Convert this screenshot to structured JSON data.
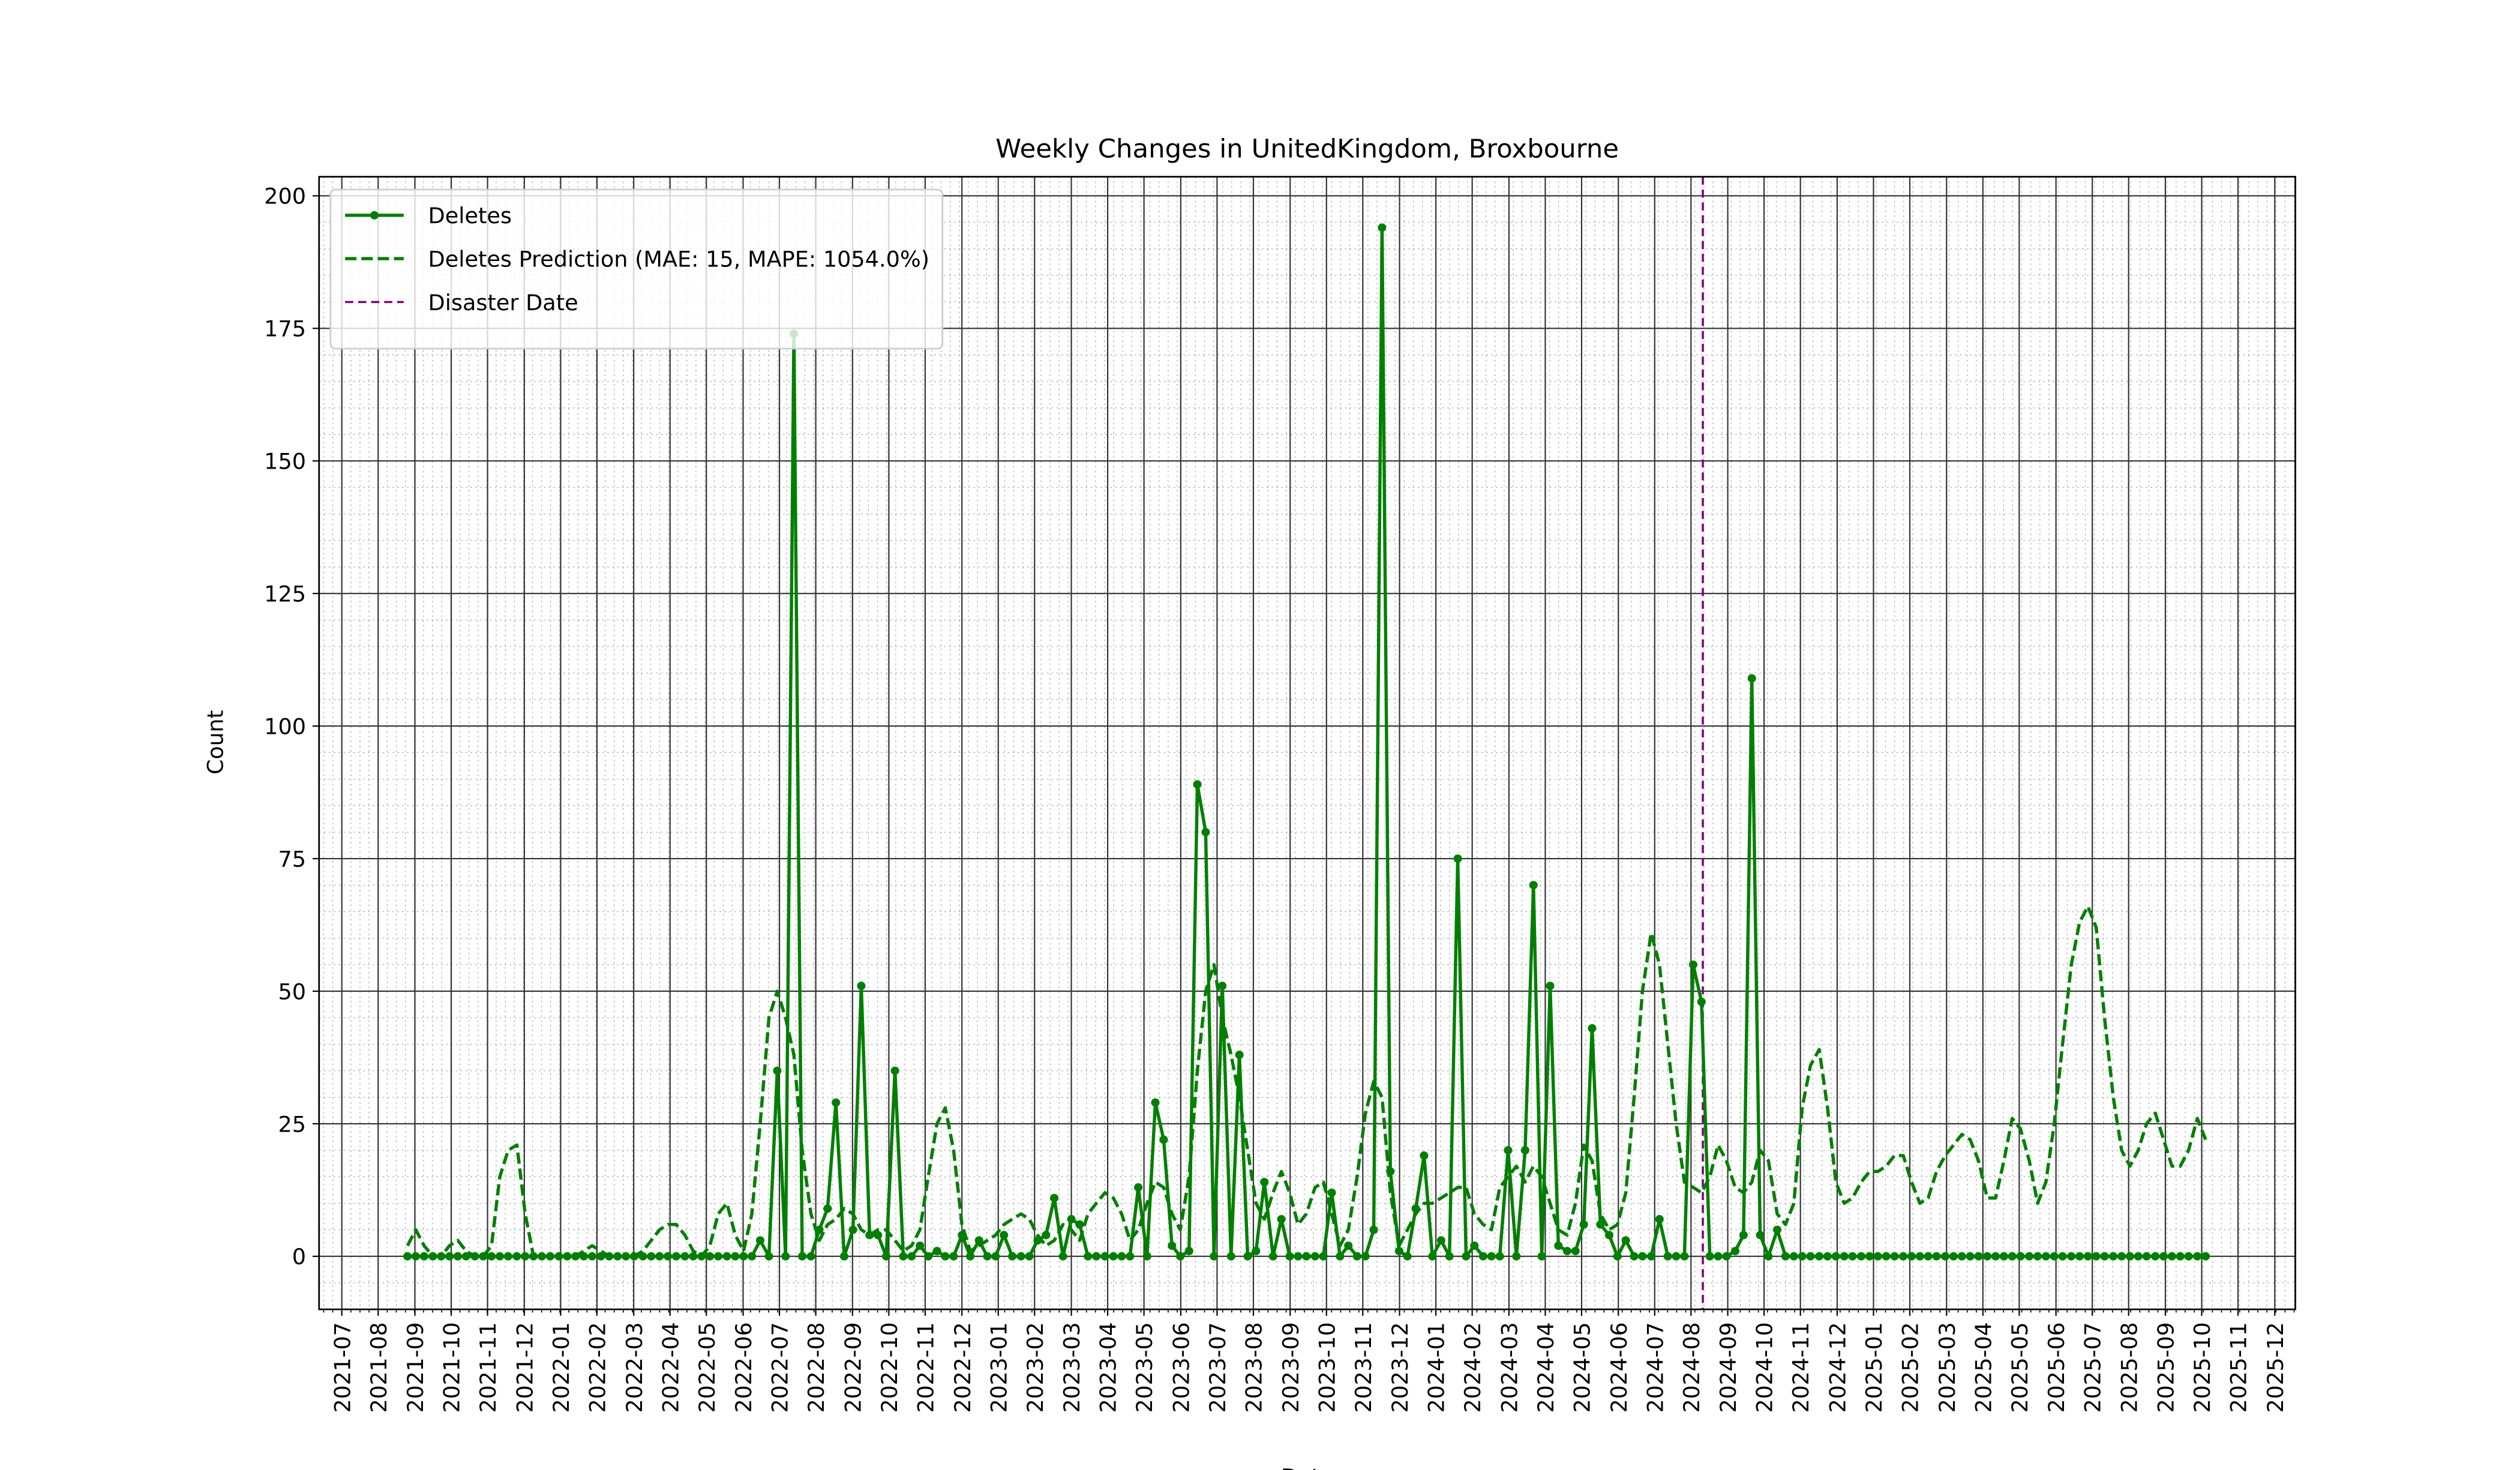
{
  "chart_data": {
    "type": "line",
    "title": "Weekly Changes in UnitedKingdom, Broxbourne",
    "xlabel": "Date",
    "ylabel": "Count",
    "xlim": [
      2021.448,
      2025.964
    ],
    "ylim": [
      -10,
      203.6
    ],
    "yticks": [
      0,
      25,
      50,
      75,
      100,
      125,
      150,
      175,
      200
    ],
    "xticks": [
      {
        "value": 2021.5,
        "label": "2021-07"
      },
      {
        "value": 2021.583,
        "label": "2021-08"
      },
      {
        "value": 2021.667,
        "label": "2021-09"
      },
      {
        "value": 2021.75,
        "label": "2021-10"
      },
      {
        "value": 2021.833,
        "label": "2021-11"
      },
      {
        "value": 2021.917,
        "label": "2021-12"
      },
      {
        "value": 2022.0,
        "label": "2022-01"
      },
      {
        "value": 2022.083,
        "label": "2022-02"
      },
      {
        "value": 2022.167,
        "label": "2022-03"
      },
      {
        "value": 2022.25,
        "label": "2022-04"
      },
      {
        "value": 2022.333,
        "label": "2022-05"
      },
      {
        "value": 2022.417,
        "label": "2022-06"
      },
      {
        "value": 2022.5,
        "label": "2022-07"
      },
      {
        "value": 2022.583,
        "label": "2022-08"
      },
      {
        "value": 2022.667,
        "label": "2022-09"
      },
      {
        "value": 2022.75,
        "label": "2022-10"
      },
      {
        "value": 2022.833,
        "label": "2022-11"
      },
      {
        "value": 2022.917,
        "label": "2022-12"
      },
      {
        "value": 2023.0,
        "label": "2023-01"
      },
      {
        "value": 2023.083,
        "label": "2023-02"
      },
      {
        "value": 2023.167,
        "label": "2023-03"
      },
      {
        "value": 2023.25,
        "label": "2023-04"
      },
      {
        "value": 2023.333,
        "label": "2023-05"
      },
      {
        "value": 2023.417,
        "label": "2023-06"
      },
      {
        "value": 2023.5,
        "label": "2023-07"
      },
      {
        "value": 2023.583,
        "label": "2023-08"
      },
      {
        "value": 2023.667,
        "label": "2023-09"
      },
      {
        "value": 2023.75,
        "label": "2023-10"
      },
      {
        "value": 2023.833,
        "label": "2023-11"
      },
      {
        "value": 2023.917,
        "label": "2023-12"
      },
      {
        "value": 2024.0,
        "label": "2024-01"
      },
      {
        "value": 2024.083,
        "label": "2024-02"
      },
      {
        "value": 2024.167,
        "label": "2024-03"
      },
      {
        "value": 2024.25,
        "label": "2024-04"
      },
      {
        "value": 2024.333,
        "label": "2024-05"
      },
      {
        "value": 2024.417,
        "label": "2024-06"
      },
      {
        "value": 2024.5,
        "label": "2024-07"
      },
      {
        "value": 2024.583,
        "label": "2024-08"
      },
      {
        "value": 2024.667,
        "label": "2024-09"
      },
      {
        "value": 2024.75,
        "label": "2024-10"
      },
      {
        "value": 2024.833,
        "label": "2024-11"
      },
      {
        "value": 2024.917,
        "label": "2024-12"
      },
      {
        "value": 2025.0,
        "label": "2025-01"
      },
      {
        "value": 2025.083,
        "label": "2025-02"
      },
      {
        "value": 2025.167,
        "label": "2025-03"
      },
      {
        "value": 2025.25,
        "label": "2025-04"
      },
      {
        "value": 2025.333,
        "label": "2025-05"
      },
      {
        "value": 2025.417,
        "label": "2025-06"
      },
      {
        "value": 2025.5,
        "label": "2025-07"
      },
      {
        "value": 2025.583,
        "label": "2025-08"
      },
      {
        "value": 2025.667,
        "label": "2025-09"
      },
      {
        "value": 2025.75,
        "label": "2025-10"
      },
      {
        "value": 2025.833,
        "label": "2025-11"
      },
      {
        "value": 2025.917,
        "label": "2025-12"
      }
    ],
    "grid": true,
    "minor_grid": true,
    "legend": "upper left",
    "x": [
      2021.65,
      2021.669,
      2021.688,
      2021.708,
      2021.727,
      2021.746,
      2021.765,
      2021.784,
      2021.804,
      2021.823,
      2021.842,
      2021.861,
      2021.88,
      2021.9,
      2021.919,
      2021.938,
      2021.957,
      2021.976,
      2021.996,
      2022.015,
      2022.034,
      2022.053,
      2022.072,
      2022.092,
      2022.111,
      2022.13,
      2022.149,
      2022.168,
      2022.188,
      2022.207,
      2022.226,
      2022.245,
      2022.264,
      2022.284,
      2022.303,
      2022.322,
      2022.341,
      2022.36,
      2022.38,
      2022.399,
      2022.418,
      2022.437,
      2022.456,
      2022.476,
      2022.495,
      2022.514,
      2022.533,
      2022.552,
      2022.572,
      2022.591,
      2022.61,
      2022.629,
      2022.648,
      2022.668,
      2022.687,
      2022.706,
      2022.725,
      2022.744,
      2022.764,
      2022.783,
      2022.802,
      2022.821,
      2022.84,
      2022.86,
      2022.879,
      2022.898,
      2022.917,
      2022.936,
      2022.956,
      2022.975,
      2022.994,
      2023.013,
      2023.032,
      2023.052,
      2023.071,
      2023.09,
      2023.109,
      2023.128,
      2023.148,
      2023.167,
      2023.186,
      2023.205,
      2023.224,
      2023.244,
      2023.263,
      2023.282,
      2023.301,
      2023.32,
      2023.34,
      2023.359,
      2023.378,
      2023.397,
      2023.416,
      2023.436,
      2023.455,
      2023.474,
      2023.493,
      2023.512,
      2023.532,
      2023.551,
      2023.57,
      2023.589,
      2023.608,
      2023.628,
      2023.647,
      2023.666,
      2023.685,
      2023.704,
      2023.724,
      2023.743,
      2023.762,
      2023.781,
      2023.8,
      2023.82,
      2023.839,
      2023.858,
      2023.877,
      2023.896,
      2023.916,
      2023.935,
      2023.954,
      2023.973,
      2023.992,
      2024.012,
      2024.031,
      2024.05,
      2024.069,
      2024.088,
      2024.108,
      2024.127,
      2024.146,
      2024.165,
      2024.184,
      2024.204,
      2024.223,
      2024.242,
      2024.261,
      2024.28,
      2024.3,
      2024.319,
      2024.338,
      2024.357,
      2024.376,
      2024.396,
      2024.415,
      2024.434,
      2024.453,
      2024.472,
      2024.492,
      2024.511,
      2024.53,
      2024.549,
      2024.568,
      2024.588,
      2024.607,
      2024.626,
      2024.645,
      2024.664,
      2024.684,
      2024.703,
      2024.722,
      2024.741,
      2024.76,
      2024.78,
      2024.799,
      2024.818,
      2024.837,
      2024.856,
      2024.876,
      2024.895,
      2024.914,
      2024.933,
      2024.952,
      2024.972,
      2024.991,
      2025.01,
      2025.029,
      2025.048,
      2025.068,
      2025.087,
      2025.106,
      2025.125,
      2025.144,
      2025.164,
      2025.183,
      2025.202,
      2025.221,
      2025.24,
      2025.26,
      2025.279,
      2025.298,
      2025.317,
      2025.336,
      2025.356,
      2025.375,
      2025.394,
      2025.413,
      2025.432,
      2025.452,
      2025.471,
      2025.49,
      2025.509,
      2025.528,
      2025.548,
      2025.567,
      2025.586,
      2025.605,
      2025.624,
      2025.644,
      2025.663,
      2025.682,
      2025.701,
      2025.72,
      2025.74,
      2025.759
    ],
    "series": [
      {
        "name": "Deletes",
        "color": "#008000",
        "style": "solid",
        "marker": true,
        "values": [
          0,
          0,
          0,
          0,
          0,
          0,
          0,
          0,
          0,
          0,
          0,
          0,
          0,
          0,
          0,
          0,
          0,
          0,
          0,
          0,
          0,
          0,
          0,
          0,
          0,
          0,
          0,
          0,
          0,
          0,
          0,
          0,
          0,
          0,
          0,
          0,
          0,
          0,
          0,
          0,
          0,
          0,
          3,
          0,
          35,
          0,
          174,
          0,
          0,
          5,
          9,
          29,
          0,
          5,
          51,
          4,
          4,
          0,
          35,
          0,
          0,
          2,
          0,
          1,
          0,
          0,
          4,
          0,
          3,
          0,
          0,
          4,
          0,
          0,
          0,
          3,
          4,
          11,
          0,
          7,
          6,
          0,
          0,
          0,
          0,
          0,
          0,
          13,
          0,
          29,
          22,
          2,
          0,
          1,
          89,
          80,
          0,
          51,
          0,
          38,
          0,
          1,
          14,
          0,
          7,
          0,
          0,
          0,
          0,
          0,
          12,
          0,
          2,
          0,
          0,
          5,
          194,
          16,
          1,
          0,
          9,
          19,
          0,
          3,
          0,
          75,
          0,
          2,
          0,
          0,
          0,
          20,
          0,
          20,
          70,
          0,
          51,
          2,
          1,
          1,
          6,
          43,
          6,
          4,
          0,
          3,
          0,
          0,
          0,
          7,
          0,
          0,
          0,
          55,
          48,
          0,
          0,
          0,
          1,
          4,
          109,
          4,
          0,
          5,
          0,
          0,
          0,
          0,
          0,
          0,
          0,
          0,
          0,
          0,
          0,
          0,
          0,
          0,
          0,
          0,
          0,
          0,
          0,
          0,
          0,
          0,
          0,
          0,
          0,
          0,
          0,
          0,
          0,
          0,
          0,
          0,
          0,
          0,
          0,
          0,
          0,
          0,
          0,
          0,
          0,
          0,
          0,
          0,
          0,
          0,
          0,
          0,
          0,
          0,
          0
        ]
      },
      {
        "name": "Deletes Prediction (MAE: 15, MAPE: 1054.0%)",
        "color": "#008000",
        "style": "dashed",
        "marker": false,
        "values": [
          2,
          5,
          2,
          0,
          0,
          2,
          3,
          1,
          0,
          0,
          2,
          15,
          20,
          21,
          8,
          0,
          0,
          0,
          0,
          0,
          0,
          1,
          2,
          1,
          0,
          0,
          0,
          0,
          1,
          3,
          5,
          6,
          6,
          4,
          1,
          0,
          2,
          8,
          10,
          4,
          1,
          8,
          25,
          45,
          50,
          45,
          38,
          20,
          8,
          3,
          6,
          7,
          9,
          8,
          5,
          4,
          5,
          5,
          3,
          1,
          2,
          5,
          15,
          25,
          28,
          20,
          6,
          1,
          2,
          3,
          4,
          6,
          7,
          8,
          7,
          4,
          2,
          3,
          6,
          5,
          3,
          8,
          10,
          12,
          11,
          8,
          3,
          5,
          10,
          14,
          13,
          8,
          5,
          15,
          35,
          50,
          55,
          45,
          38,
          30,
          20,
          10,
          7,
          12,
          16,
          12,
          6,
          8,
          13,
          14,
          8,
          2,
          5,
          15,
          27,
          33,
          30,
          12,
          2,
          5,
          8,
          10,
          10,
          11,
          12,
          13,
          13,
          8,
          6,
          5,
          13,
          15,
          17,
          14,
          17,
          15,
          10,
          5,
          4,
          10,
          21,
          18,
          8,
          5,
          6,
          12,
          30,
          50,
          61,
          55,
          40,
          25,
          14,
          13,
          12,
          15,
          21,
          18,
          13,
          12,
          14,
          20,
          18,
          8,
          6,
          10,
          28,
          36,
          39,
          28,
          14,
          10,
          11,
          14,
          16,
          16,
          17,
          19,
          19,
          14,
          10,
          11,
          16,
          19,
          21,
          23,
          22,
          18,
          11,
          11,
          18,
          26,
          24,
          18,
          10,
          14,
          25,
          40,
          55,
          63,
          66,
          62,
          45,
          30,
          20,
          17,
          20,
          25,
          27,
          22,
          17,
          17,
          20,
          26,
          22
        ]
      }
    ],
    "vlines": [
      {
        "name": "Disaster Date",
        "x": 2024.61,
        "color": "#800080"
      }
    ]
  }
}
